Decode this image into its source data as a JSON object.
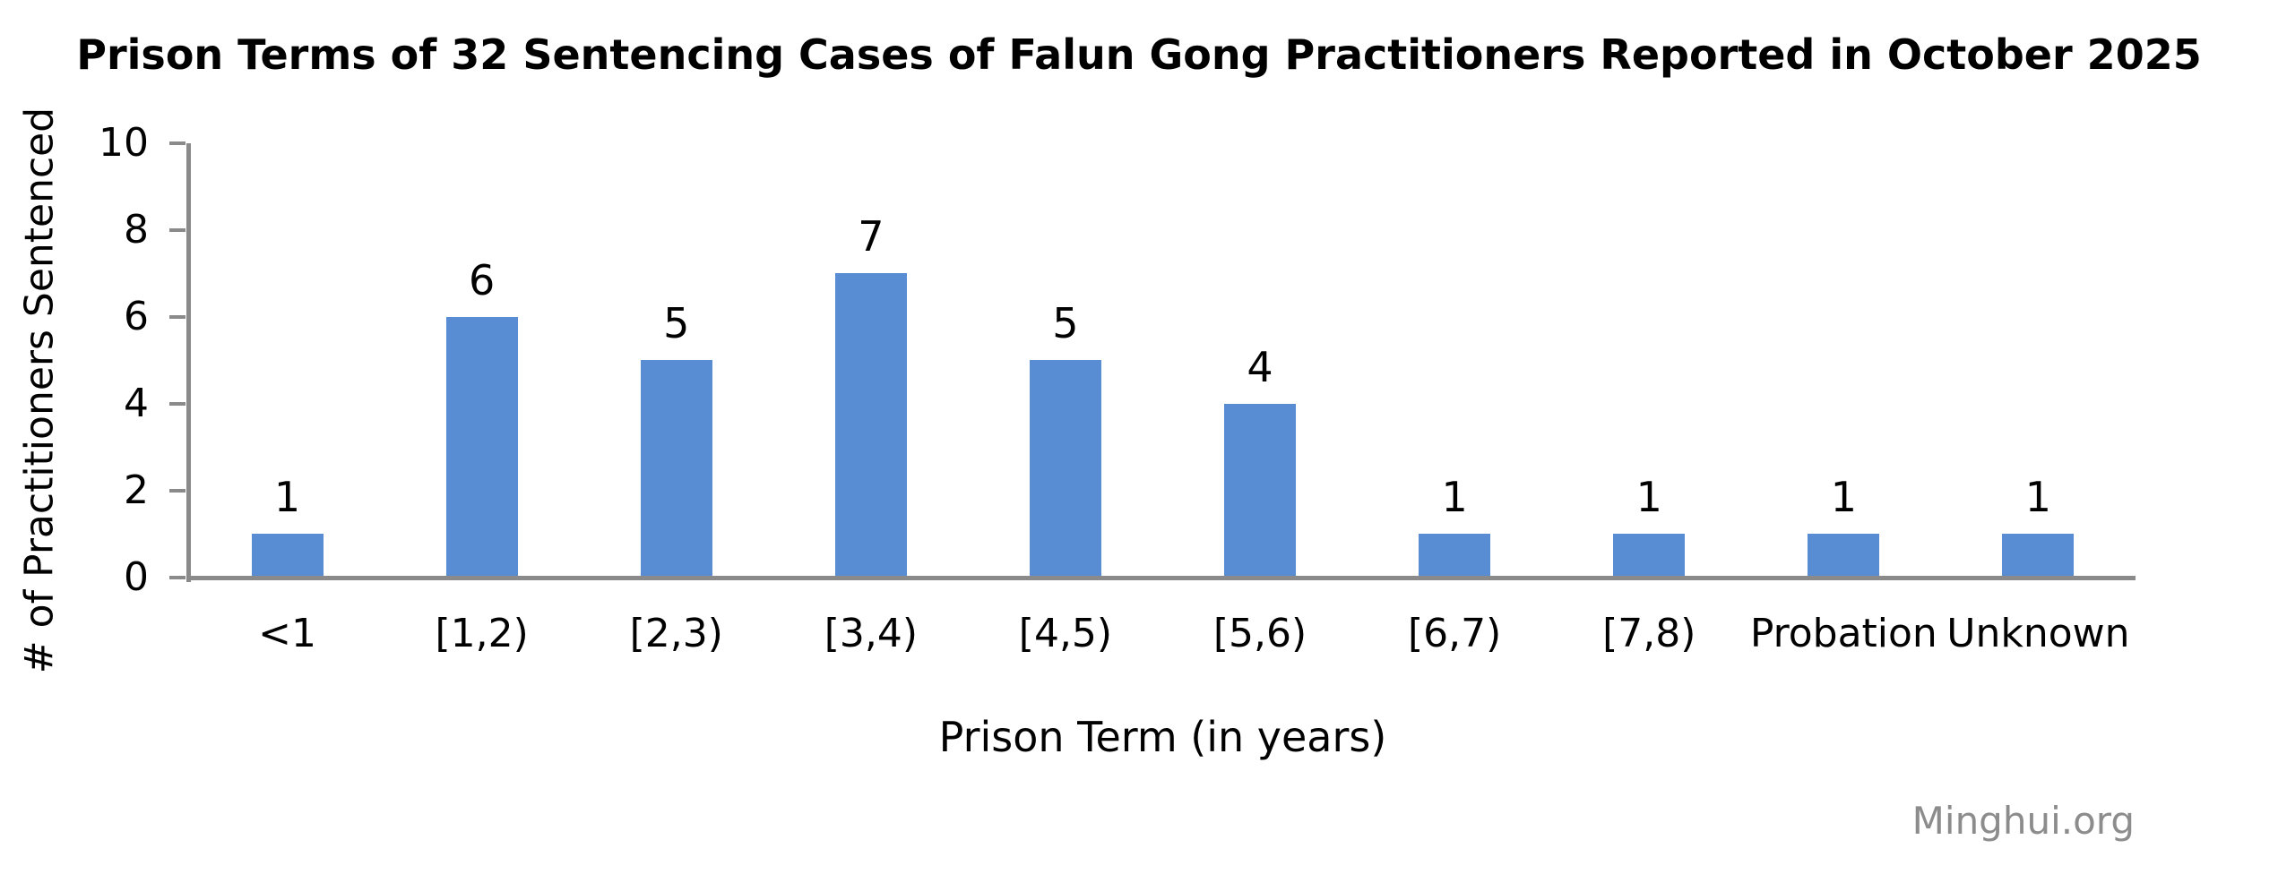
{
  "title": "Prison Terms of 32 Sentencing Cases of Falun Gong Practitioners Reported in October 2025",
  "watermark": {
    "text": "Minghui.org",
    "color": "#8C8C8C"
  },
  "chart_data": {
    "type": "bar",
    "title": "Prison Terms of 32 Sentencing Cases of Falun Gong Practitioners Reported in October 2025",
    "categories": [
      "<1",
      "[1,2)",
      "[2,3)",
      "[3,4)",
      "[4,5)",
      "[5,6)",
      "[6,7)",
      "[7,8)",
      "Probation",
      "Unknown"
    ],
    "values": [
      1,
      6,
      5,
      7,
      5,
      4,
      1,
      1,
      1,
      1
    ],
    "total_cases": 32,
    "xlabel": "Prison Term (in years)",
    "ylabel": "# of Practitioners Sentenced",
    "ylim": [
      0,
      10
    ],
    "yticks": [
      0,
      2,
      4,
      6,
      8,
      10
    ],
    "grid": false,
    "legend": "none",
    "data_labels": true,
    "bar_color": "#588DD4",
    "axis_color": "#8A8A8A",
    "text_color": "#000000"
  }
}
